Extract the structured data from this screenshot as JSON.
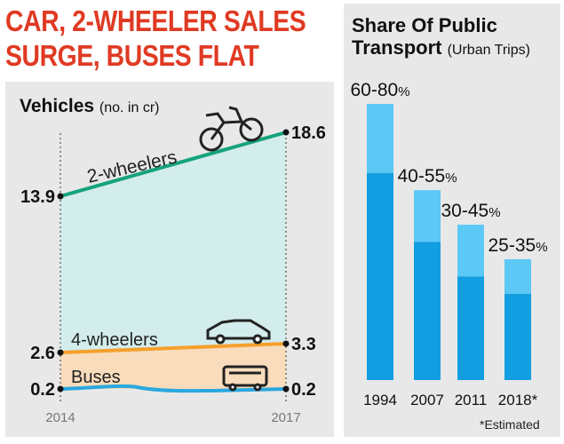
{
  "headline": {
    "line1": "CAR, 2-WHEELER SALES",
    "line2": "SURGE, BUSES FLAT"
  },
  "vehicles_panel": {
    "title": "Vehicles",
    "unit": "(no. in cr)"
  },
  "share_panel": {
    "title_line1": "Share Of Public",
    "title_line2": "Transport",
    "unit": "(Urban Trips)",
    "footnote": "*Estimated"
  },
  "icons": [
    "motorcycle-icon",
    "car-icon",
    "bus-icon"
  ],
  "colors": {
    "headline": "#e03a23",
    "two_wheelers": "#15a37c",
    "four_wheelers": "#f5a02c",
    "buses": "#2aa7df",
    "area_two_wheelers": "#d3ecec",
    "area_four_wheelers": "#f8dcbc",
    "bar_dark": "#129ee0",
    "bar_light": "#5cc8f5",
    "panel_bg": "#e8e8e8"
  },
  "chart_data": [
    {
      "type": "line",
      "x": [
        "2014",
        "2017"
      ],
      "series": [
        {
          "name": "2-wheelers",
          "values": [
            13.9,
            18.6
          ],
          "labels": [
            "13.9",
            "18.6"
          ]
        },
        {
          "name": "4-wheelers",
          "values": [
            2.6,
            3.3
          ],
          "labels": [
            "2.6",
            "3.3"
          ]
        },
        {
          "name": "Buses",
          "values": [
            0.2,
            0.2
          ],
          "labels": [
            "0.2",
            "0.2"
          ]
        }
      ],
      "title": "Vehicles",
      "ylabel": "(no. in cr)",
      "grid": false
    },
    {
      "type": "bar",
      "categories": [
        "1994",
        "2007",
        "2011",
        "2018*"
      ],
      "range_low": [
        60,
        40,
        30,
        25
      ],
      "range_high": [
        80,
        55,
        45,
        35
      ],
      "value_labels": [
        "60-80",
        "40-55",
        "30-45",
        "25-35"
      ],
      "value_unit": "%",
      "title": "Share Of Public Transport",
      "ylabel": "(Urban Trips)",
      "ylim": [
        0,
        80
      ]
    }
  ]
}
